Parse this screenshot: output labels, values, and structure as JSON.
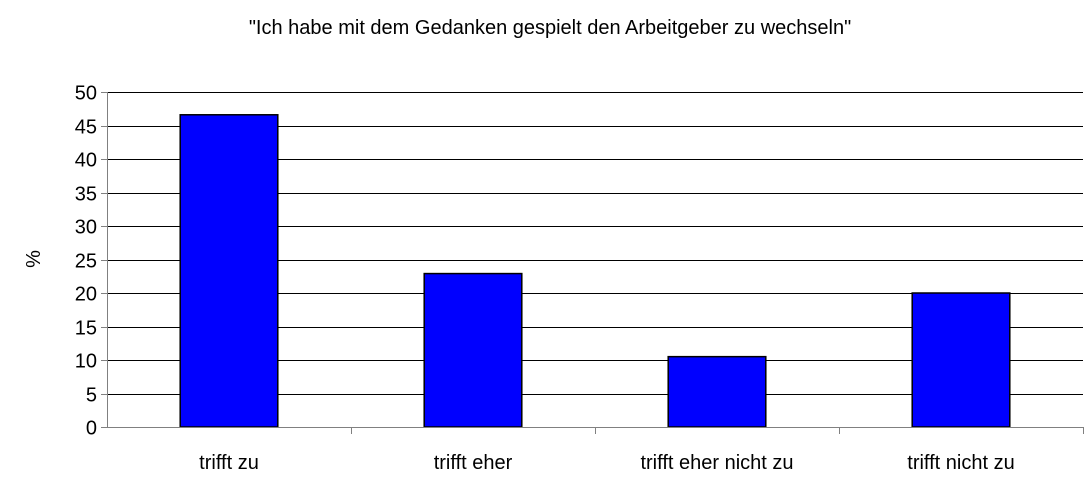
{
  "chart_data": {
    "type": "bar",
    "title": "\"Ich habe mit dem Gedanken gespielt den Arbeitgeber zu wechseln\"",
    "xlabel": "",
    "ylabel": "%",
    "categories": [
      "trifft zu",
      "trifft eher",
      "trifft eher nicht zu",
      "trifft nicht zu"
    ],
    "values": [
      46.6,
      22.9,
      10.5,
      20.0
    ],
    "ylim": [
      0,
      50
    ],
    "ytick_step": 5,
    "ytick_labels": [
      "0",
      "5",
      "10",
      "15",
      "20",
      "25",
      "30",
      "35",
      "40",
      "45",
      "50"
    ],
    "grid": true,
    "legend": "none",
    "colors": {
      "bar_fill": "#0000ff",
      "bar_stroke": "#000000",
      "grid": "#000000",
      "axis": "#808080"
    }
  }
}
